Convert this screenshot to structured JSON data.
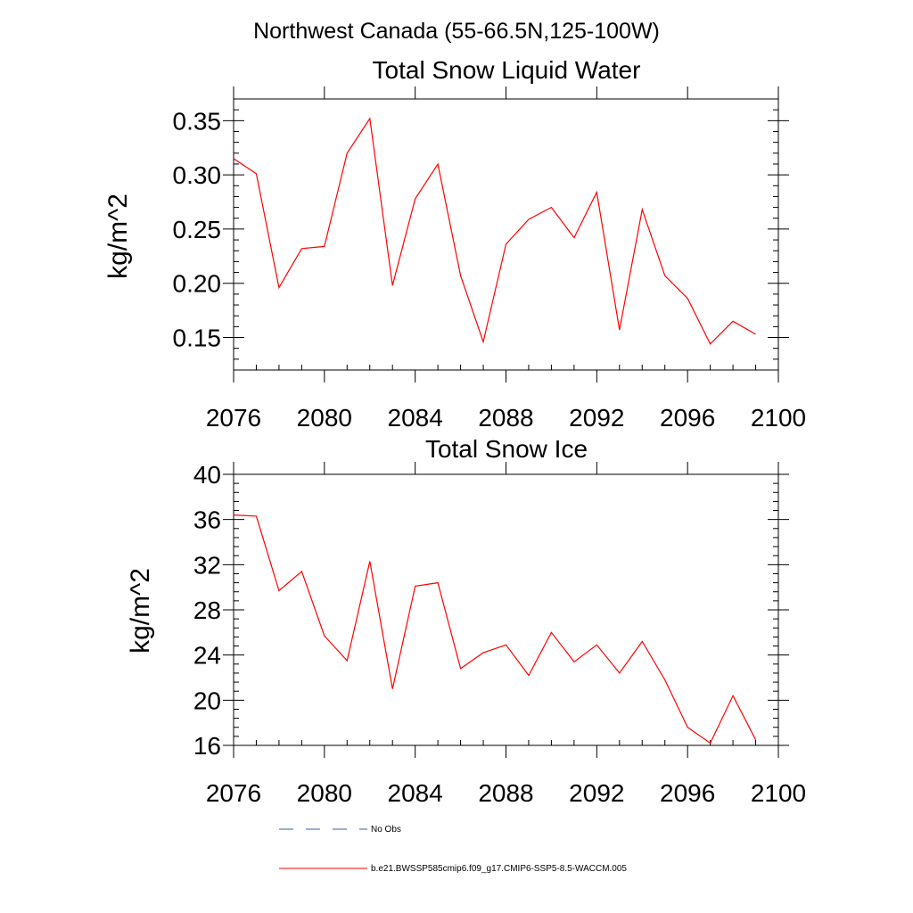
{
  "figure": {
    "title": "Northwest Canada (55-66.5N,125-100W)"
  },
  "colors": {
    "series_model": "#ff0000",
    "series_obs": "#3b5ba5",
    "axes": "#000000"
  },
  "chart_data": [
    {
      "type": "line",
      "title": "Total Snow Liquid Water",
      "xlabel": "",
      "ylabel": "kg/m^2",
      "xlim": [
        2076,
        2100
      ],
      "ylim": [
        0.12,
        0.37
      ],
      "xticks": [
        2076,
        2080,
        2084,
        2088,
        2092,
        2096,
        2100
      ],
      "xtick_labels": [
        "2076",
        "2080",
        "2084",
        "2088",
        "2092",
        "2096",
        "2100"
      ],
      "yticks": [
        0.15,
        0.2,
        0.25,
        0.3,
        0.35
      ],
      "ytick_labels": [
        "0.15",
        "0.20",
        "0.25",
        "0.30",
        "0.35"
      ],
      "x": [
        2076,
        2077,
        2078,
        2079,
        2080,
        2081,
        2082,
        2083,
        2084,
        2085,
        2086,
        2087,
        2088,
        2089,
        2090,
        2091,
        2092,
        2093,
        2094,
        2095,
        2096,
        2097,
        2098,
        2099
      ],
      "series": [
        {
          "name": "b.e21.BWSSP585cmip6.f09_g17.CMIP6-SSP5-8.5-WACCM.005",
          "values": [
            0.315,
            0.301,
            0.196,
            0.232,
            0.234,
            0.32,
            0.352,
            0.198,
            0.278,
            0.31,
            0.207,
            0.146,
            0.236,
            0.259,
            0.27,
            0.242,
            0.284,
            0.157,
            0.268,
            0.207,
            0.186,
            0.144,
            0.165,
            0.153
          ]
        }
      ],
      "grid": false
    },
    {
      "type": "line",
      "title": "Total Snow Ice",
      "xlabel": "",
      "ylabel": "kg/m^2",
      "xlim": [
        2076,
        2100
      ],
      "ylim": [
        16,
        40
      ],
      "xticks": [
        2076,
        2080,
        2084,
        2088,
        2092,
        2096,
        2100
      ],
      "xtick_labels": [
        "2076",
        "2080",
        "2084",
        "2088",
        "2092",
        "2096",
        "2100"
      ],
      "yticks": [
        16,
        20,
        24,
        28,
        32,
        36,
        40
      ],
      "ytick_labels": [
        "16",
        "20",
        "24",
        "28",
        "32",
        "36",
        "40"
      ],
      "x": [
        2076,
        2077,
        2078,
        2079,
        2080,
        2081,
        2082,
        2083,
        2084,
        2085,
        2086,
        2087,
        2088,
        2089,
        2090,
        2091,
        2092,
        2093,
        2094,
        2095,
        2096,
        2097,
        2098,
        2099
      ],
      "series": [
        {
          "name": "b.e21.BWSSP585cmip6.f09_g17.CMIP6-SSP5-8.5-WACCM.005",
          "values": [
            36.4,
            36.3,
            29.7,
            31.4,
            25.7,
            23.5,
            32.3,
            21.0,
            30.1,
            30.4,
            22.8,
            24.2,
            24.9,
            22.2,
            26.0,
            23.4,
            24.9,
            22.4,
            25.2,
            21.8,
            17.6,
            16.2,
            20.4,
            16.5
          ]
        }
      ],
      "grid": false
    }
  ],
  "legend": {
    "placement": "bottom",
    "entries": [
      {
        "label": "No Obs",
        "style": "dashed"
      },
      {
        "label": "b.e21.BWSSP585cmip6.f09_g17.CMIP6-SSP5-8.5-WACCM.005",
        "style": "solid"
      }
    ]
  }
}
